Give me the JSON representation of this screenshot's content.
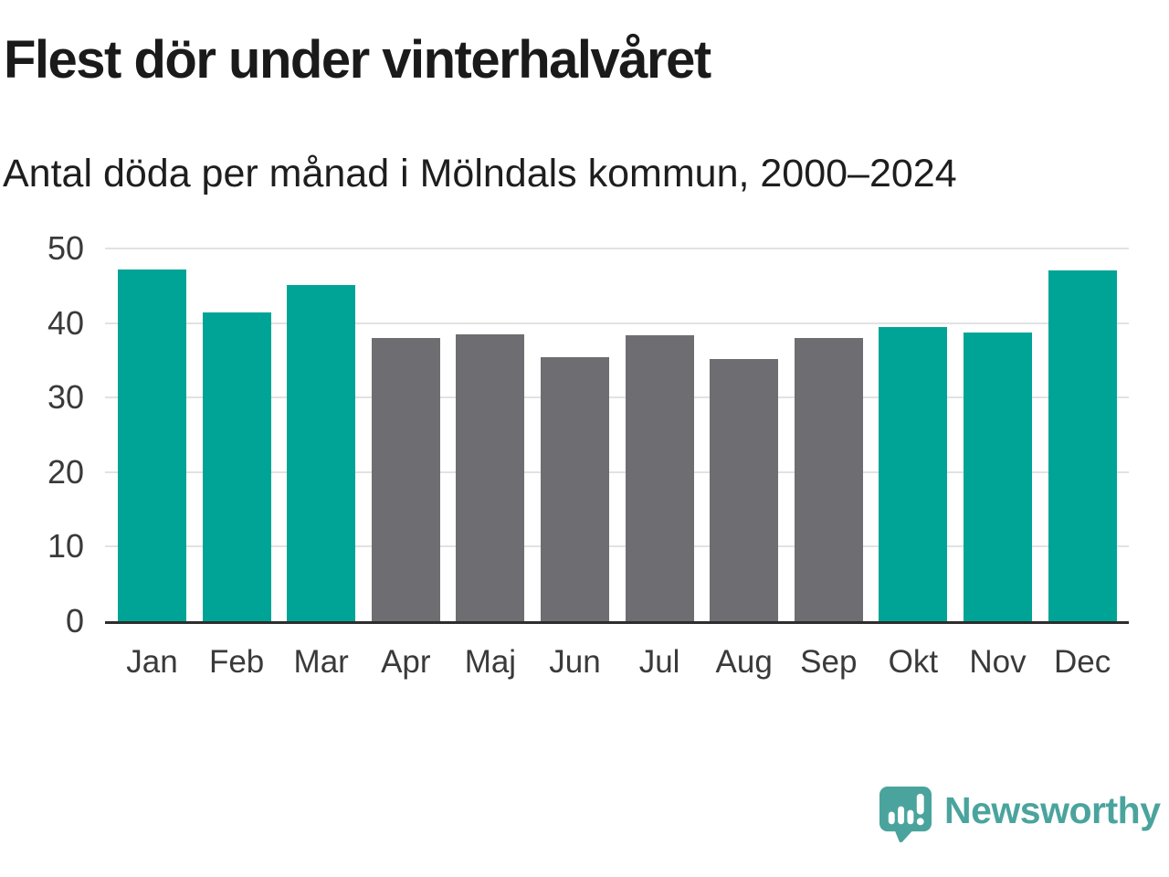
{
  "title": "Flest dör under vinterhalvåret",
  "subtitle": "Antal döda per månad i Mölndals kommun, 2000–2024",
  "branding": {
    "name": "Newsworthy"
  },
  "colors": {
    "winter_bar": "#00a497",
    "summer_bar": "#6d6d72",
    "grid": "#e2e2e2",
    "axis": "#2d2d2d",
    "brand": "#4aa49d"
  },
  "chart_data": {
    "type": "bar",
    "title": "Flest dör under vinterhalvåret",
    "subtitle": "Antal döda per månad i Mölndals kommun, 2000–2024",
    "categories": [
      "Jan",
      "Feb",
      "Mar",
      "Apr",
      "Maj",
      "Jun",
      "Jul",
      "Aug",
      "Sep",
      "Okt",
      "Nov",
      "Dec"
    ],
    "values": [
      47.2,
      41.4,
      45.1,
      38.0,
      38.5,
      35.4,
      38.3,
      35.2,
      38.0,
      39.5,
      38.7,
      47.1
    ],
    "highlight_winter": [
      1,
      1,
      1,
      0,
      0,
      0,
      0,
      0,
      0,
      1,
      1,
      1
    ],
    "xlabel": "",
    "ylabel": "",
    "ylim": [
      0,
      50
    ],
    "yticks": [
      0,
      10,
      20,
      30,
      40,
      50
    ],
    "grid": "horizontal",
    "legend": "none"
  }
}
